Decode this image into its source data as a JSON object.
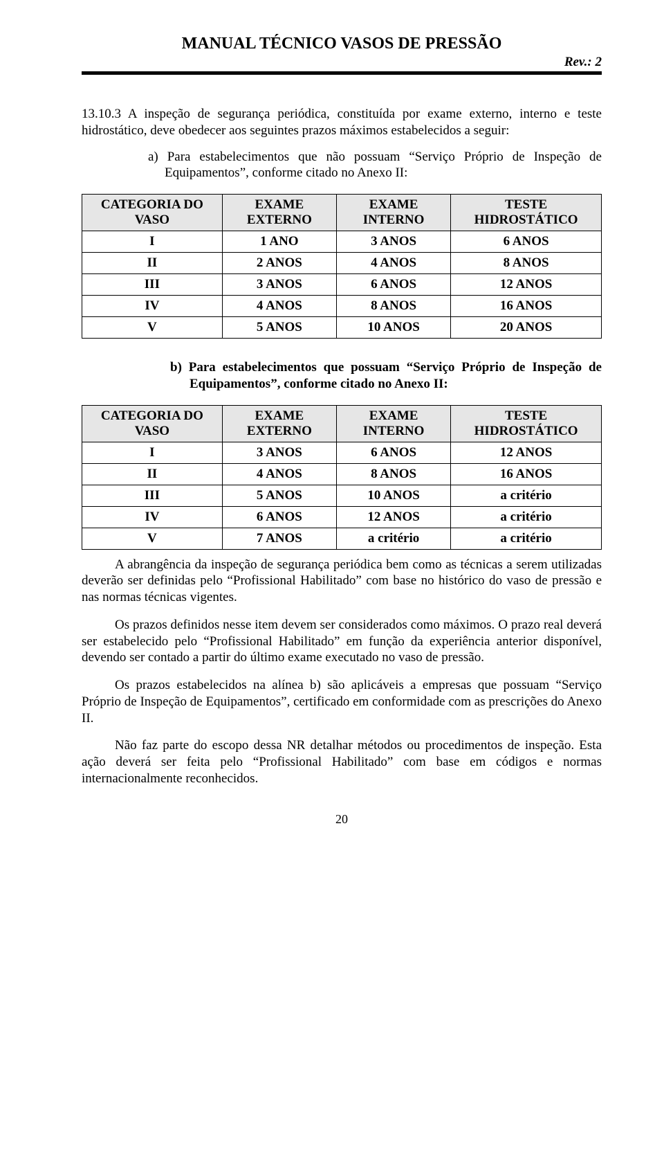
{
  "header": {
    "title": "MANUAL TÉCNICO VASOS DE PRESSÃO",
    "rev": "Rev.: 2"
  },
  "clause": {
    "number": "13.10.3",
    "text": "A inspeção de segurança periódica, constituída por exame externo, interno e teste hidrostático, deve obedecer aos seguintes prazos máximos estabelecidos a seguir:"
  },
  "item_a": "a) Para estabelecimentos que não possuam \"Serviço Próprio de Inspeção de Equipamentos\", conforme citado no Anexo II:",
  "table_headers": {
    "c1a": "CATEGORIA DO",
    "c1b": "VASO",
    "c2a": "EXAME",
    "c2b": "EXTERNO",
    "c3a": "EXAME",
    "c3b": "INTERNO",
    "c4a": "TESTE",
    "c4b": "HIDROSTÁTICO"
  },
  "table_a": {
    "rows": [
      [
        "I",
        "1 ANO",
        "3 ANOS",
        "6 ANOS"
      ],
      [
        "II",
        "2 ANOS",
        "4 ANOS",
        "8 ANOS"
      ],
      [
        "III",
        "3 ANOS",
        "6 ANOS",
        "12 ANOS"
      ],
      [
        "IV",
        "4 ANOS",
        "8 ANOS",
        "16 ANOS"
      ],
      [
        "V",
        "5 ANOS",
        "10 ANOS",
        "20 ANOS"
      ]
    ]
  },
  "item_b": "b) Para estabelecimentos que possuam \"Serviço Próprio de Inspeção de Equipamentos\", conforme citado no Anexo II:",
  "table_b": {
    "rows": [
      [
        "I",
        "3 ANOS",
        "6 ANOS",
        "12 ANOS"
      ],
      [
        "II",
        "4 ANOS",
        "8 ANOS",
        "16 ANOS"
      ],
      [
        "III",
        "5 ANOS",
        "10 ANOS",
        "a critério"
      ],
      [
        "IV",
        "6 ANOS",
        "12 ANOS",
        "a critério"
      ],
      [
        "V",
        "7 ANOS",
        "a critério",
        "a critério"
      ]
    ]
  },
  "para1": "A abrangência da inspeção de segurança periódica bem como as técnicas a serem utilizadas deverão ser definidas pelo \"Profissional Habilitado\" com base no histórico do vaso de pressão e nas normas técnicas vigentes.",
  "para2": "Os prazos definidos nesse item devem ser considerados como máximos. O prazo real deverá ser estabelecido pelo \"Profissional Habilitado\" em função da experiência anterior disponível, devendo ser contado a partir do último exame executado no vaso de pressão.",
  "para3": "Os prazos estabelecidos na alínea b) são aplicáveis a empresas que possuam \"Serviço Próprio de Inspeção de Equipamentos\", certificado em conformidade com as prescrições do Anexo II.",
  "para4": "Não faz parte do escopo dessa NR detalhar métodos ou procedimentos de inspeção. Esta ação deverá ser feita pelo \"Profissional Habilitado\" com base em códigos e normas internacionalmente reconhecidos.",
  "page_number": "20",
  "colors": {
    "header_bg": "#e6e6e6",
    "border": "#000000",
    "text": "#000000",
    "page_bg": "#ffffff"
  }
}
